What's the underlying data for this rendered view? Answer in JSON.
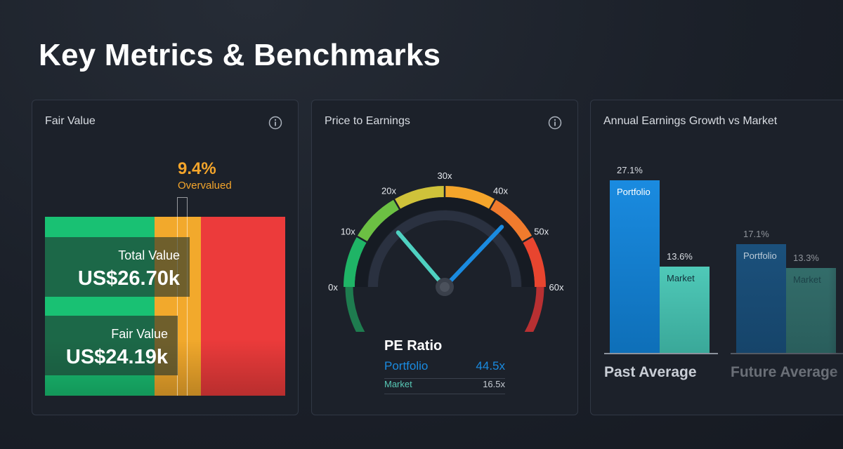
{
  "page": {
    "title": "Key Metrics & Benchmarks"
  },
  "fair_value": {
    "title": "Fair Value",
    "percent": "9.4%",
    "status": "Overvalued",
    "total_label": "Total Value",
    "total_value": "US$26.70k",
    "fair_label": "Fair Value",
    "fair_value": "US$24.19k",
    "colors": {
      "undervalued": "#19c173",
      "fair": "#f2a92c",
      "overvalued": "#ec3b3b"
    }
  },
  "price_to_earnings": {
    "title": "Price to Earnings",
    "gauge_ticks": [
      "0x",
      "10x",
      "20x",
      "30x",
      "40x",
      "50x",
      "60x"
    ],
    "gauge_min": 0,
    "gauge_max": 60,
    "portfolio_value": 44.5,
    "market_value": 16.5,
    "pe_label": "PE Ratio",
    "portfolio_label": "Portfolio",
    "portfolio_text": "44.5x",
    "market_label": "Market",
    "market_text": "16.5x",
    "colors": {
      "portfolio": "#1a8be0",
      "market": "#4fd1c1"
    }
  },
  "earnings_growth": {
    "title": "Annual Earnings Growth vs Market",
    "chart_data": {
      "type": "bar",
      "categories": [
        "Past Average",
        "Future Average"
      ],
      "series": [
        {
          "name": "Portfolio",
          "values": [
            27.1,
            17.1
          ]
        },
        {
          "name": "Market",
          "values": [
            13.6,
            13.3
          ]
        }
      ],
      "value_labels": {
        "portfolio": [
          "27.1%",
          "17.1%"
        ],
        "market": [
          "13.6%",
          "13.3%"
        ]
      },
      "ylim": [
        0,
        30
      ]
    },
    "colors": {
      "portfolio": "#1a8be0",
      "market": "#4fc9b8"
    }
  }
}
